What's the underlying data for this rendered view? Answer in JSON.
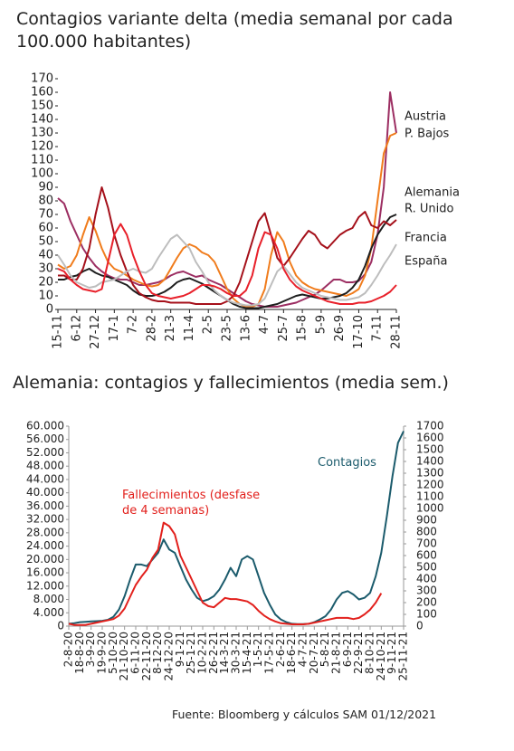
{
  "chart_data": [
    {
      "type": "line",
      "title": "Contagios variante delta (media semanal por cada 100.000 habitantes)",
      "categories": [
        "15-11",
        null,
        null,
        "6-12",
        null,
        null,
        "27-12",
        null,
        null,
        "17-1",
        null,
        null,
        "7-2",
        null,
        null,
        "28-2",
        null,
        null,
        "21-3",
        null,
        null,
        "11-4",
        null,
        null,
        "2-5",
        null,
        null,
        "23-5",
        null,
        null,
        "13-6",
        null,
        null,
        "4-7",
        null,
        null,
        "25-7",
        null,
        null,
        "15-8",
        null,
        null,
        "5-9",
        null,
        null,
        "26-9",
        null,
        null,
        "17-10",
        null,
        null,
        "7-11",
        null,
        null,
        "28-11"
      ],
      "ylim": [
        0,
        170
      ],
      "yticks": [
        0,
        10,
        20,
        30,
        40,
        50,
        60,
        70,
        80,
        90,
        100,
        110,
        120,
        130,
        140,
        150,
        160,
        170
      ],
      "series": [
        {
          "name": "Austria",
          "color": "#9c2e62",
          "values": [
            82,
            78,
            65,
            55,
            45,
            38,
            32,
            28,
            25,
            23,
            22,
            22,
            20,
            18,
            18,
            19,
            20,
            22,
            25,
            27,
            28,
            26,
            24,
            25,
            22,
            20,
            18,
            15,
            12,
            9,
            6,
            4,
            3,
            2,
            2,
            2,
            3,
            4,
            5,
            7,
            9,
            11,
            14,
            18,
            22,
            22,
            20,
            20,
            21,
            26,
            35,
            55,
            90,
            160,
            130
          ]
        },
        {
          "name": "P. Bajos",
          "color": "#f07c1c",
          "values": [
            33,
            30,
            32,
            40,
            55,
            68,
            58,
            45,
            35,
            30,
            28,
            25,
            22,
            20,
            18,
            17,
            18,
            22,
            30,
            38,
            45,
            48,
            46,
            42,
            40,
            35,
            25,
            15,
            8,
            4,
            2,
            2,
            4,
            15,
            40,
            57,
            50,
            35,
            25,
            20,
            17,
            15,
            14,
            13,
            12,
            11,
            10,
            12,
            15,
            25,
            45,
            80,
            115,
            128,
            130
          ]
        },
        {
          "name": "Alemania",
          "color": "#1e1e1e",
          "values": [
            22,
            22,
            24,
            25,
            28,
            30,
            27,
            25,
            24,
            22,
            20,
            18,
            14,
            11,
            10,
            10,
            11,
            13,
            16,
            20,
            22,
            23,
            21,
            19,
            16,
            13,
            10,
            7,
            4,
            2,
            1,
            1,
            1,
            2,
            3,
            4,
            6,
            8,
            10,
            11,
            10,
            9,
            8,
            8,
            9,
            10,
            12,
            16,
            22,
            32,
            45,
            55,
            62,
            68,
            70
          ]
        },
        {
          "name": "R. Unido",
          "color": "#a5101a",
          "values": [
            25,
            25,
            22,
            22,
            30,
            45,
            70,
            90,
            75,
            55,
            40,
            28,
            18,
            12,
            9,
            7,
            6,
            6,
            5,
            5,
            5,
            5,
            4,
            4,
            4,
            4,
            4,
            6,
            10,
            20,
            35,
            50,
            65,
            71,
            55,
            38,
            32,
            38,
            45,
            52,
            58,
            55,
            48,
            45,
            50,
            55,
            58,
            60,
            68,
            72,
            62,
            60,
            65,
            62,
            66
          ]
        },
        {
          "name": "Francia",
          "color": "#bdbdbd",
          "values": [
            40,
            33,
            25,
            20,
            18,
            16,
            17,
            20,
            21,
            22,
            25,
            28,
            30,
            28,
            27,
            30,
            38,
            45,
            52,
            55,
            50,
            45,
            35,
            28,
            20,
            14,
            10,
            7,
            5,
            4,
            3,
            3,
            4,
            8,
            18,
            28,
            32,
            26,
            20,
            16,
            14,
            12,
            10,
            9,
            8,
            7,
            7,
            8,
            9,
            12,
            18,
            25,
            33,
            40,
            48
          ]
        },
        {
          "name": "España",
          "color": "#e8202a",
          "values": [
            30,
            28,
            22,
            18,
            15,
            14,
            13,
            15,
            35,
            55,
            63,
            55,
            40,
            28,
            18,
            12,
            10,
            9,
            8,
            9,
            10,
            12,
            15,
            18,
            18,
            17,
            15,
            12,
            10,
            10,
            14,
            25,
            45,
            57,
            55,
            45,
            30,
            22,
            17,
            14,
            12,
            10,
            8,
            6,
            5,
            4,
            4,
            4,
            5,
            5,
            6,
            8,
            10,
            13,
            18
          ]
        }
      ]
    },
    {
      "type": "line",
      "title": "Alemania: contagios y fallecimientos (media sem.)",
      "categories": [
        "2-8-20",
        null,
        "18-8-20",
        null,
        "3-9-20",
        null,
        "19-9-20",
        null,
        "5-10-20",
        null,
        "21-10-20",
        null,
        "6-11-20",
        null,
        "22-11-20",
        null,
        "8-12-20",
        null,
        "24-12-20",
        null,
        "9-1-21",
        null,
        "25-1-21",
        null,
        "10-2-21",
        null,
        "26-2-21",
        null,
        "14-3-21",
        null,
        "30-3-21",
        null,
        "15-4-21",
        null,
        "1-5-21",
        null,
        "17-5-21",
        null,
        "2-6-21",
        null,
        "18-6-21",
        null,
        "4-7-21",
        null,
        "20-7-21",
        null,
        "5-8-21",
        null,
        "21-8-21",
        null,
        "6-9-21",
        null,
        "22-9-21",
        null,
        "8-10-21",
        null,
        "24-10-21",
        null,
        "9-11-21",
        null,
        "25-11-21"
      ],
      "ylim": [
        0,
        60000
      ],
      "yticks": [
        0,
        {
          "value": 4000,
          "label": "4.000"
        },
        {
          "value": 8000,
          "label": "8.000"
        },
        {
          "value": 12000,
          "label": "12.000"
        },
        {
          "value": 16000,
          "label": "16.000"
        },
        {
          "value": 20000,
          "label": "20.000"
        },
        {
          "value": 24000,
          "label": "24.000"
        },
        {
          "value": 28000,
          "label": "28.000"
        },
        {
          "value": 32000,
          "label": "32.000"
        },
        {
          "value": 36000,
          "label": "36.000"
        },
        {
          "value": 40000,
          "label": "40.000"
        },
        {
          "value": 44000,
          "label": "44.000"
        },
        {
          "value": 48000,
          "label": "48.000"
        },
        {
          "value": 52000,
          "label": "52.000"
        },
        {
          "value": 56000,
          "label": "56.000"
        },
        {
          "value": 60000,
          "label": "60.000"
        }
      ],
      "y2lim": [
        0,
        1700
      ],
      "y2ticks": [
        0,
        100,
        200,
        300,
        400,
        500,
        600,
        700,
        800,
        900,
        1000,
        1100,
        1200,
        1300,
        1400,
        1500,
        1600,
        1700
      ],
      "series": [
        {
          "name": "Contagios",
          "color": "#1b5b6c",
          "values": [
            700,
            900,
            1200,
            1300,
            1400,
            1500,
            1600,
            1900,
            2800,
            5000,
            9000,
            14000,
            18500,
            18500,
            18000,
            20000,
            22000,
            26000,
            23000,
            22000,
            18000,
            14000,
            11000,
            8500,
            7500,
            8000,
            9000,
            11000,
            14000,
            17500,
            15000,
            20000,
            21000,
            20000,
            15000,
            10000,
            6500,
            3500,
            2000,
            1200,
            700,
            600,
            600,
            700,
            1200,
            2000,
            3000,
            5000,
            8000,
            10000,
            10500,
            9500,
            8000,
            8500,
            10000,
            15000,
            22000,
            33000,
            45000,
            55000,
            58500
          ]
        },
        {
          "name": "Fallecimientos (desfase de 4 semanas)",
          "color": "#e2201c",
          "axis": "y2",
          "values": [
            20,
            10,
            10,
            10,
            20,
            30,
            40,
            50,
            60,
            90,
            150,
            250,
            350,
            420,
            480,
            580,
            650,
            880,
            850,
            780,
            600,
            500,
            400,
            300,
            200,
            170,
            160,
            200,
            240,
            230,
            230,
            220,
            210,
            180,
            130,
            90,
            60,
            40,
            25,
            20,
            15,
            15,
            15,
            20,
            30,
            40,
            50,
            60,
            70,
            70,
            70,
            60,
            70,
            100,
            140,
            200,
            280,
            null,
            null,
            null,
            null
          ]
        }
      ]
    }
  ],
  "source": "Fuente: Bloomberg y cálculos SAM 01/12/2021"
}
